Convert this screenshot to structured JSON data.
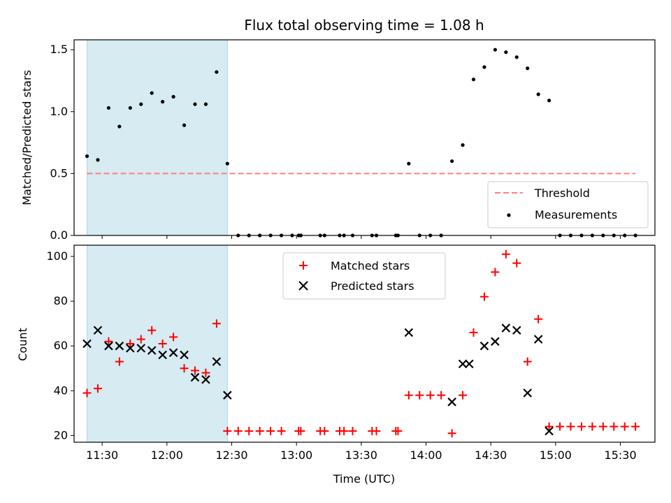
{
  "chart_data": [
    {
      "type": "scatter",
      "title": "Flux total observing time = 1.08 h",
      "xlabel": "",
      "ylabel": "Matched/Predicted stars",
      "ylim": [
        0,
        1.58
      ],
      "xlim": [
        "11:17",
        "15:46"
      ],
      "yticks": [
        "0.0",
        "0.5",
        "1.0",
        "1.5"
      ],
      "shaded_span": {
        "start": "11:23",
        "end": "12:28",
        "color": "#add8e6"
      },
      "threshold": {
        "name": "Threshold",
        "value": 0.5,
        "color": "#ff7f7f",
        "style": "dashed"
      },
      "series": [
        {
          "name": "Measurements",
          "marker": "dot",
          "color": "#000000",
          "points": [
            [
              "11:23",
              0.64
            ],
            [
              "11:28",
              0.61
            ],
            [
              "11:33",
              1.03
            ],
            [
              "11:38",
              0.88
            ],
            [
              "11:43",
              1.03
            ],
            [
              "11:48",
              1.06
            ],
            [
              "11:53",
              1.15
            ],
            [
              "11:58",
              1.08
            ],
            [
              "12:03",
              1.12
            ],
            [
              "12:08",
              0.89
            ],
            [
              "12:13",
              1.06
            ],
            [
              "12:18",
              1.06
            ],
            [
              "12:23",
              1.32
            ],
            [
              "12:28",
              0.58
            ],
            [
              "12:33",
              0
            ],
            [
              "12:38",
              0
            ],
            [
              "12:43",
              0
            ],
            [
              "12:48",
              0
            ],
            [
              "12:53",
              0
            ],
            [
              "12:58",
              0
            ],
            [
              "13:01",
              0
            ],
            [
              "13:02",
              0
            ],
            [
              "13:11",
              0
            ],
            [
              "13:13",
              0
            ],
            [
              "13:20",
              0
            ],
            [
              "13:22",
              0
            ],
            [
              "13:26",
              0
            ],
            [
              "13:35",
              0
            ],
            [
              "13:37",
              0
            ],
            [
              "13:46",
              0
            ],
            [
              "13:47",
              0
            ],
            [
              "13:52",
              0.58
            ],
            [
              "13:57",
              0
            ],
            [
              "14:02",
              0
            ],
            [
              "14:07",
              0
            ],
            [
              "14:12",
              0.6
            ],
            [
              "14:17",
              0.73
            ],
            [
              "14:22",
              1.26
            ],
            [
              "14:27",
              1.36
            ],
            [
              "14:32",
              1.5
            ],
            [
              "14:37",
              1.48
            ],
            [
              "14:42",
              1.44
            ],
            [
              "14:47",
              1.35
            ],
            [
              "14:52",
              1.14
            ],
            [
              "14:57",
              1.09
            ],
            [
              "15:02",
              0
            ],
            [
              "15:07",
              0
            ],
            [
              "15:12",
              0
            ],
            [
              "15:17",
              0
            ],
            [
              "15:22",
              0
            ],
            [
              "15:27",
              0
            ],
            [
              "15:32",
              0
            ],
            [
              "15:37",
              0
            ]
          ]
        }
      ],
      "legend": {
        "position": "lower right",
        "entries": [
          "Threshold",
          "Measurements"
        ]
      }
    },
    {
      "type": "scatter",
      "title": "",
      "xlabel": "Time (UTC)",
      "ylabel": "Count",
      "ylim": [
        17,
        105
      ],
      "xlim": [
        "11:17",
        "15:46"
      ],
      "yticks": [
        "20",
        "40",
        "60",
        "80",
        "100"
      ],
      "xticks": [
        "11:30",
        "12:00",
        "12:30",
        "13:00",
        "13:30",
        "14:00",
        "14:30",
        "15:00",
        "15:30"
      ],
      "shaded_span": {
        "start": "11:23",
        "end": "12:28",
        "color": "#add8e6"
      },
      "series": [
        {
          "name": "Matched stars",
          "marker": "plus",
          "color": "#ff0000",
          "points": [
            [
              "11:23",
              39
            ],
            [
              "11:28",
              41
            ],
            [
              "11:33",
              62
            ],
            [
              "11:38",
              53
            ],
            [
              "11:43",
              61
            ],
            [
              "11:48",
              63
            ],
            [
              "11:53",
              67
            ],
            [
              "11:58",
              61
            ],
            [
              "12:03",
              64
            ],
            [
              "12:08",
              50
            ],
            [
              "12:13",
              49
            ],
            [
              "12:18",
              48
            ],
            [
              "12:23",
              70
            ],
            [
              "12:28",
              22
            ],
            [
              "12:33",
              22
            ],
            [
              "12:38",
              22
            ],
            [
              "12:43",
              22
            ],
            [
              "12:48",
              22
            ],
            [
              "12:53",
              22
            ],
            [
              "13:01",
              22
            ],
            [
              "13:02",
              22
            ],
            [
              "13:11",
              22
            ],
            [
              "13:13",
              22
            ],
            [
              "13:20",
              22
            ],
            [
              "13:22",
              22
            ],
            [
              "13:26",
              22
            ],
            [
              "13:35",
              22
            ],
            [
              "13:37",
              22
            ],
            [
              "13:46",
              22
            ],
            [
              "13:47",
              22
            ],
            [
              "13:52",
              38
            ],
            [
              "13:57",
              38
            ],
            [
              "14:02",
              38
            ],
            [
              "14:07",
              38
            ],
            [
              "14:12",
              21
            ],
            [
              "14:17",
              38
            ],
            [
              "14:22",
              66
            ],
            [
              "14:27",
              82
            ],
            [
              "14:32",
              93
            ],
            [
              "14:37",
              101
            ],
            [
              "14:42",
              97
            ],
            [
              "14:47",
              53
            ],
            [
              "14:52",
              72
            ],
            [
              "14:57",
              24
            ],
            [
              "15:02",
              24
            ],
            [
              "15:07",
              24
            ],
            [
              "15:12",
              24
            ],
            [
              "15:17",
              24
            ],
            [
              "15:22",
              24
            ],
            [
              "15:27",
              24
            ],
            [
              "15:32",
              24
            ],
            [
              "15:37",
              24
            ]
          ]
        },
        {
          "name": "Predicted stars",
          "marker": "x",
          "color": "#000000",
          "points": [
            [
              "11:23",
              61
            ],
            [
              "11:28",
              67
            ],
            [
              "11:33",
              60
            ],
            [
              "11:38",
              60
            ],
            [
              "11:43",
              59
            ],
            [
              "11:48",
              59
            ],
            [
              "11:53",
              58
            ],
            [
              "11:58",
              56
            ],
            [
              "12:03",
              57
            ],
            [
              "12:08",
              56
            ],
            [
              "12:13",
              46
            ],
            [
              "12:18",
              45
            ],
            [
              "12:23",
              53
            ],
            [
              "12:28",
              38
            ],
            [
              "13:52",
              66
            ],
            [
              "14:12",
              35
            ],
            [
              "14:17",
              52
            ],
            [
              "14:20",
              52
            ],
            [
              "14:27",
              60
            ],
            [
              "14:32",
              62
            ],
            [
              "14:37",
              68
            ],
            [
              "14:42",
              67
            ],
            [
              "14:47",
              39
            ],
            [
              "14:52",
              63
            ],
            [
              "14:57",
              22
            ]
          ]
        }
      ],
      "legend": {
        "position": "upper center",
        "entries": [
          "Matched stars",
          "Predicted stars"
        ]
      }
    }
  ]
}
